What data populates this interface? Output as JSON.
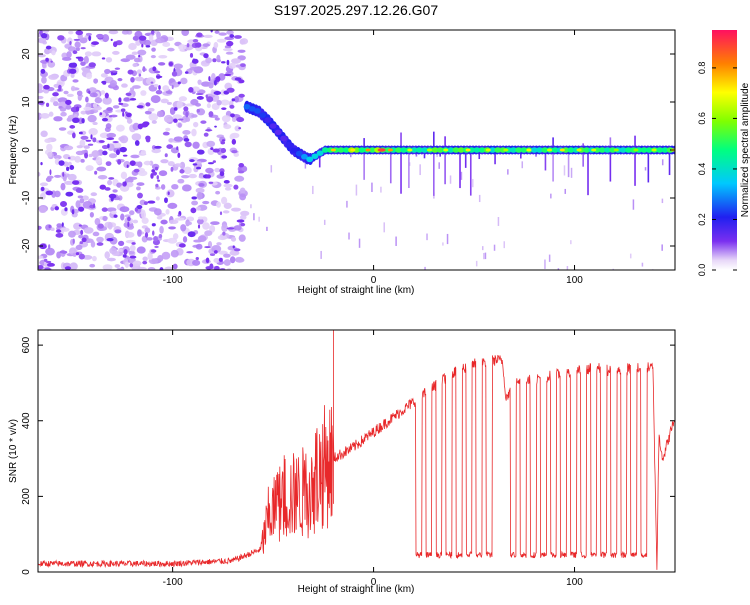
{
  "title": "S197.2025.297.12.26.G07",
  "colors": {
    "snr_line": "#e8282a",
    "spectrum_low": "#a370e6",
    "spectrum_mid": "#2fd4f0",
    "spectrum_peak": "#ff2010",
    "axis": "#000000"
  },
  "colorbar": {
    "label": "Normalized spectral amplitude",
    "ticks": [
      "0.0",
      "0.2",
      "0.4",
      "0.6",
      "0.8"
    ],
    "tick_values": [
      0.0,
      0.2,
      0.4,
      0.6,
      0.8
    ],
    "range": [
      0,
      0.95
    ]
  },
  "chart_data": [
    {
      "type": "heatmap",
      "name": "spectrogram",
      "xlabel": "Height of straight line (km)",
      "ylabel": "Frequency (Hz)",
      "xlim": [
        -167,
        150
      ],
      "ylim": [
        -25,
        25
      ],
      "x_ticks": [
        -100,
        0,
        100
      ],
      "x_tick_labels": [
        "-100",
        "0",
        "100"
      ],
      "y_ticks": [
        -20,
        -10,
        0,
        10,
        20
      ],
      "y_tick_labels": [
        "-20",
        "-10",
        "0",
        "10",
        "20"
      ],
      "noise_region_x": [
        -167,
        -64
      ],
      "signal_track": {
        "x": [
          -63,
          -57,
          -52,
          -48,
          -44,
          -40,
          -36,
          -32,
          -28,
          -24,
          -20,
          -10,
          0,
          20,
          50,
          80,
          100,
          120,
          150
        ],
        "frequency": [
          9,
          8,
          6,
          4,
          2,
          0,
          -1,
          -2,
          -1,
          0,
          0,
          0,
          0,
          0,
          0,
          0,
          0,
          0,
          0
        ],
        "amplitude": [
          0.45,
          0.4,
          0.35,
          0.3,
          0.3,
          0.4,
          0.45,
          0.55,
          0.65,
          0.75,
          0.85,
          0.9,
          0.95,
          0.8,
          0.8,
          0.75,
          0.8,
          0.75,
          0.8
        ]
      }
    },
    {
      "type": "line",
      "name": "snr",
      "xlabel": "Height of straight line (km)",
      "ylabel": "SNR (10 * v/v)",
      "xlim": [
        -167,
        150
      ],
      "ylim": [
        0,
        640
      ],
      "x_ticks": [
        -100,
        0,
        100
      ],
      "x_tick_labels": [
        "-100",
        "0",
        "100"
      ],
      "y_ticks": [
        0,
        200,
        400,
        600
      ],
      "y_tick_labels": [
        "0",
        "200",
        "400",
        "600"
      ],
      "envelope": {
        "x": [
          -167,
          -100,
          -70,
          -56,
          -52,
          -48,
          -44,
          -38,
          -32,
          -28,
          -20,
          -10,
          0,
          10,
          20,
          30,
          40,
          50,
          60,
          64,
          66,
          70,
          80,
          90,
          100,
          110,
          120,
          130,
          139,
          141,
          142,
          144,
          150
        ],
        "y": [
          22,
          22,
          30,
          60,
          150,
          170,
          200,
          200,
          220,
          260,
          300,
          330,
          370,
          410,
          450,
          490,
          530,
          550,
          560,
          560,
          460,
          500,
          510,
          520,
          530,
          540,
          530,
          540,
          540,
          10,
          360,
          300,
          410
        ]
      },
      "dropout_segments": [
        {
          "x": [
            21,
            24
          ],
          "y": 45
        },
        {
          "x": [
            26,
            29
          ],
          "y": 45
        },
        {
          "x": [
            31,
            34
          ],
          "y": 45
        },
        {
          "x": [
            36,
            39
          ],
          "y": 45
        },
        {
          "x": [
            41,
            44
          ],
          "y": 45
        },
        {
          "x": [
            46,
            49
          ],
          "y": 45
        },
        {
          "x": [
            51,
            54
          ],
          "y": 45
        },
        {
          "x": [
            56,
            59
          ],
          "y": 45
        },
        {
          "x": [
            68,
            71
          ],
          "y": 45
        },
        {
          "x": [
            73,
            76
          ],
          "y": 45
        },
        {
          "x": [
            78,
            81
          ],
          "y": 45
        },
        {
          "x": [
            83,
            86
          ],
          "y": 45
        },
        {
          "x": [
            88,
            91
          ],
          "y": 45
        },
        {
          "x": [
            93,
            96
          ],
          "y": 45
        },
        {
          "x": [
            98,
            101
          ],
          "y": 45
        },
        {
          "x": [
            103,
            106
          ],
          "y": 45
        },
        {
          "x": [
            108,
            111
          ],
          "y": 45
        },
        {
          "x": [
            113,
            116
          ],
          "y": 45
        },
        {
          "x": [
            118,
            121
          ],
          "y": 45
        },
        {
          "x": [
            123,
            126
          ],
          "y": 45
        },
        {
          "x": [
            128,
            131
          ],
          "y": 45
        },
        {
          "x": [
            133,
            136
          ],
          "y": 45
        }
      ],
      "spike": {
        "x": -20,
        "y": 640
      }
    }
  ]
}
